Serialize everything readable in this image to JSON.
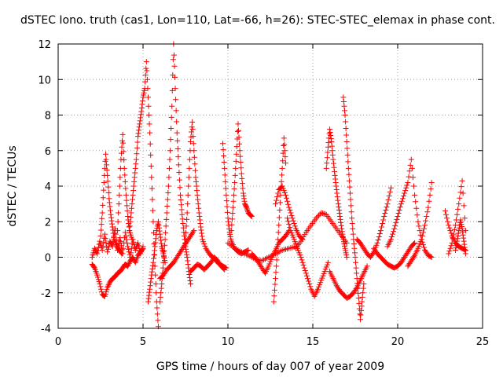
{
  "chart_data": {
    "type": "scatter",
    "title": "dSTEC Iono. truth (cas1, Lon=110, Lat=-66, h=26): STEC-STEC_elemax in phase cont.",
    "xlabel": "GPS time / hours of day 007 of year 2009",
    "ylabel": "dSTEC  / TECUs",
    "xlim": [
      0,
      25
    ],
    "ylim": [
      -4,
      12
    ],
    "x_ticks": [
      0,
      5,
      10,
      15,
      20,
      25
    ],
    "y_ticks": [
      -4,
      -2,
      0,
      2,
      4,
      6,
      8,
      10,
      12
    ],
    "x_tick_labels": [
      "0",
      "5",
      "10",
      "15",
      "20",
      "25"
    ],
    "y_tick_labels": [
      "-4",
      "-2",
      "0",
      "2",
      "4",
      "6",
      "8",
      "10",
      "12"
    ],
    "grid": true,
    "marker": "+",
    "color": "#ff0000",
    "series": [
      {
        "x": [
          2.0,
          2.15,
          2.3,
          2.45,
          2.6,
          2.75,
          2.9,
          3.05,
          3.2,
          3.35,
          3.5,
          3.65,
          3.8,
          3.95,
          4.1,
          4.25,
          4.4,
          4.55,
          4.7,
          4.85,
          5.0
        ],
        "y": [
          0.0,
          0.5,
          0.2,
          0.9,
          0.4,
          1.3,
          0.3,
          0.9,
          0.6,
          1.6,
          0.4,
          1.1,
          0.2,
          1.4,
          0.6,
          0.0,
          1.0,
          0.4,
          0.8,
          0.2,
          0.6
        ]
      },
      {
        "x": [
          2.0,
          2.15,
          2.3,
          2.45,
          2.6,
          2.75,
          2.9,
          3.05,
          3.2,
          3.35,
          3.5,
          3.65,
          3.8,
          3.95,
          4.1,
          4.25,
          4.4,
          4.55,
          4.7,
          4.85,
          5.0
        ],
        "y": [
          -0.4,
          -0.6,
          -1.0,
          -1.5,
          -2.1,
          -2.2,
          -1.7,
          -1.4,
          -1.2,
          -1.1,
          -0.9,
          -0.8,
          -0.6,
          -0.4,
          -0.5,
          -0.2,
          0.0,
          -0.3,
          0.1,
          0.3,
          0.5
        ]
      },
      {
        "x": [
          2.5,
          2.6,
          2.7,
          2.8,
          2.9,
          3.0,
          3.1,
          3.2,
          3.3,
          3.45,
          3.6,
          3.75
        ],
        "y": [
          1.2,
          2.5,
          4.2,
          5.8,
          4.6,
          3.3,
          2.4,
          1.7,
          1.0,
          0.6,
          0.4,
          0.2
        ]
      },
      {
        "x": [
          3.5,
          3.6,
          3.7,
          3.8,
          3.9,
          4.0,
          4.1,
          4.2,
          4.35
        ],
        "y": [
          1.5,
          3.5,
          5.5,
          6.9,
          5.0,
          3.5,
          2.3,
          1.5,
          1.0
        ]
      },
      {
        "x": [
          4.2,
          4.3,
          4.4,
          4.5,
          4.6,
          4.7,
          4.8,
          4.9,
          5.0,
          5.1,
          5.2,
          5.3,
          5.4,
          5.5,
          5.6,
          5.7,
          5.8,
          5.9
        ],
        "y": [
          1.5,
          2.5,
          3.5,
          4.5,
          5.5,
          6.8,
          7.5,
          8.2,
          9.0,
          9.5,
          11.0,
          9.0,
          7.0,
          4.5,
          2.0,
          -0.5,
          -2.5,
          -3.9
        ]
      },
      {
        "x": [
          5.3,
          5.4,
          5.5,
          5.6,
          5.7,
          5.8,
          5.9,
          6.0,
          6.1,
          6.2,
          6.3
        ],
        "y": [
          -2.5,
          -1.8,
          -1.0,
          -0.3,
          0.6,
          1.5,
          2.0,
          1.3,
          0.6,
          0.2,
          -0.3
        ]
      },
      {
        "x": [
          6.0,
          6.1,
          6.2,
          6.3,
          6.4,
          6.5,
          6.6,
          6.7,
          6.8,
          6.9,
          7.0,
          7.1,
          7.2,
          7.3,
          7.4,
          7.5,
          7.6,
          7.7,
          7.8
        ],
        "y": [
          -2.5,
          -1.5,
          -0.3,
          1.0,
          2.5,
          4.0,
          6.0,
          8.5,
          12.0,
          9.5,
          7.0,
          5.2,
          3.5,
          2.4,
          1.4,
          0.6,
          0.0,
          -0.8,
          -1.5
        ]
      },
      {
        "x": [
          6.0,
          6.2,
          6.4,
          6.6,
          6.8,
          7.0,
          7.2,
          7.4,
          7.6,
          7.8,
          8.0
        ],
        "y": [
          -1.2,
          -1.0,
          -0.7,
          -0.5,
          -0.3,
          0.0,
          0.3,
          0.6,
          0.9,
          1.2,
          1.5
        ]
      },
      {
        "x": [
          7.5,
          7.6,
          7.7,
          7.8,
          7.9,
          8.0,
          8.1,
          8.2,
          8.3,
          8.4,
          8.5,
          8.7,
          8.9,
          9.1,
          9.3,
          9.5,
          9.7,
          9.9
        ],
        "y": [
          1.0,
          2.5,
          4.5,
          6.5,
          7.6,
          6.0,
          4.5,
          3.5,
          2.5,
          1.7,
          1.0,
          0.5,
          0.2,
          0.0,
          -0.2,
          -0.4,
          -0.5,
          -0.6
        ]
      },
      {
        "x": [
          7.8,
          8.0,
          8.2,
          8.4,
          8.6,
          8.8,
          9.0,
          9.2,
          9.4,
          9.6,
          9.8
        ],
        "y": [
          -0.8,
          -0.6,
          -0.4,
          -0.5,
          -0.7,
          -0.5,
          -0.3,
          0.0,
          -0.2,
          -0.5,
          -0.7
        ]
      },
      {
        "x": [
          9.7,
          9.8,
          9.9,
          10.0,
          10.1,
          10.2,
          10.4,
          10.6,
          10.8,
          11.0,
          11.2
        ],
        "y": [
          6.4,
          5.0,
          3.5,
          2.2,
          1.4,
          0.9,
          0.5,
          0.3,
          0.2,
          0.3,
          0.4
        ]
      },
      {
        "x": [
          10.2,
          10.3,
          10.4,
          10.5,
          10.6,
          10.7,
          10.8,
          10.9,
          11.0,
          11.1,
          11.2,
          11.3,
          11.4
        ],
        "y": [
          1.5,
          2.8,
          4.2,
          5.8,
          7.5,
          6.0,
          4.7,
          3.6,
          3.0,
          2.8,
          2.5,
          2.4,
          2.3
        ]
      },
      {
        "x": [
          10.0,
          10.4,
          10.8,
          11.2,
          11.6,
          12.0,
          12.4,
          12.8,
          13.2,
          13.6,
          14.0
        ],
        "y": [
          0.8,
          0.5,
          0.3,
          0.1,
          -0.1,
          -0.2,
          0.0,
          0.2,
          0.4,
          0.5,
          0.6
        ]
      },
      {
        "x": [
          11.4,
          11.6,
          11.8,
          12.0,
          12.2,
          12.4,
          12.6,
          12.8,
          13.0,
          13.2,
          13.4,
          13.6
        ],
        "y": [
          0.2,
          0.0,
          -0.3,
          -0.6,
          -0.9,
          -0.5,
          0.0,
          0.4,
          0.8,
          1.0,
          1.2,
          1.5
        ]
      },
      {
        "x": [
          12.7,
          12.8,
          12.9,
          13.0,
          13.1,
          13.2,
          13.3,
          13.4
        ],
        "y": [
          -2.5,
          -1.2,
          0.2,
          1.8,
          3.5,
          5.0,
          6.7,
          5.3
        ]
      },
      {
        "x": [
          12.8,
          13.0,
          13.2,
          13.4,
          13.6,
          13.8,
          14.0,
          14.2,
          14.4
        ],
        "y": [
          3.0,
          3.8,
          4.0,
          3.5,
          2.8,
          2.2,
          1.6,
          1.2,
          1.0
        ]
      },
      {
        "x": [
          13.5,
          13.7,
          13.9,
          14.1,
          14.3,
          14.5,
          14.7,
          14.9,
          15.1,
          15.3,
          15.5,
          15.7,
          15.9
        ],
        "y": [
          2.2,
          1.5,
          1.0,
          0.5,
          0.0,
          -0.6,
          -1.2,
          -1.8,
          -2.2,
          -1.8,
          -1.3,
          -0.8,
          -0.3
        ]
      },
      {
        "x": [
          14.0,
          14.3,
          14.6,
          14.9,
          15.2,
          15.5,
          15.8,
          16.1,
          16.4,
          16.7,
          17.0
        ],
        "y": [
          0.5,
          0.9,
          1.4,
          1.8,
          2.2,
          2.5,
          2.4,
          2.0,
          1.6,
          1.2,
          0.8
        ]
      },
      {
        "x": [
          15.8,
          15.9,
          16.0,
          16.1,
          16.2,
          16.3,
          16.4,
          16.5,
          16.6,
          16.7,
          16.8,
          16.9,
          17.0
        ],
        "y": [
          5.0,
          6.2,
          7.2,
          6.5,
          5.5,
          4.6,
          3.8,
          3.0,
          2.3,
          1.6,
          1.0,
          0.5,
          0.0
        ]
      },
      {
        "x": [
          16.8,
          16.9,
          17.0,
          17.1,
          17.2,
          17.3,
          17.4,
          17.5,
          17.6,
          17.7,
          17.8,
          17.9,
          18.0
        ],
        "y": [
          9.0,
          8.0,
          6.5,
          5.0,
          3.6,
          2.2,
          1.0,
          0.0,
          -1.2,
          -2.3,
          -3.5,
          -2.5,
          -1.5
        ]
      },
      {
        "x": [
          16.0,
          16.2,
          16.4,
          16.6,
          16.8,
          17.0,
          17.2,
          17.4,
          17.6,
          17.8,
          18.0,
          18.2
        ],
        "y": [
          -0.8,
          -1.2,
          -1.6,
          -1.9,
          -2.1,
          -2.3,
          -2.2,
          -2.0,
          -1.7,
          -1.3,
          -0.9,
          -0.5
        ]
      },
      {
        "x": [
          17.6,
          17.8,
          18.0,
          18.2,
          18.4,
          18.6,
          18.8,
          19.0,
          19.2,
          19.4,
          19.6
        ],
        "y": [
          1.0,
          0.8,
          0.5,
          0.2,
          0.0,
          0.3,
          0.8,
          1.5,
          2.3,
          3.0,
          3.9
        ]
      },
      {
        "x": [
          18.6,
          18.8,
          19.0,
          19.2,
          19.4,
          19.6,
          19.8,
          20.0,
          20.2,
          20.4,
          20.6,
          20.8,
          21.0
        ],
        "y": [
          0.5,
          0.2,
          0.0,
          -0.2,
          -0.4,
          -0.5,
          -0.6,
          -0.5,
          -0.3,
          0.0,
          0.3,
          0.6,
          0.8
        ]
      },
      {
        "x": [
          19.4,
          19.6,
          19.8,
          20.0,
          20.2,
          20.4,
          20.6,
          20.8,
          21.0,
          21.2,
          21.4,
          21.6,
          21.8,
          22.0
        ],
        "y": [
          0.6,
          1.0,
          1.6,
          2.3,
          3.0,
          3.6,
          4.2,
          5.5,
          3.5,
          2.0,
          1.0,
          0.4,
          0.1,
          0.0
        ]
      },
      {
        "x": [
          20.6,
          20.8,
          21.0,
          21.2,
          21.4,
          21.6,
          21.8,
          22.0
        ],
        "y": [
          -0.5,
          -0.2,
          0.1,
          0.5,
          1.0,
          1.8,
          2.8,
          4.2
        ]
      },
      {
        "x": [
          22.8,
          23.0,
          23.2,
          23.4,
          23.6,
          23.8,
          24.0
        ],
        "y": [
          2.6,
          1.8,
          1.2,
          0.8,
          0.6,
          0.5,
          0.4
        ]
      },
      {
        "x": [
          23.0,
          23.2,
          23.4,
          23.6,
          23.8,
          24.0
        ],
        "y": [
          0.2,
          0.8,
          1.8,
          3.0,
          4.3,
          1.5
        ]
      },
      {
        "x": [
          23.4,
          23.5,
          23.6,
          23.7,
          23.8,
          23.9,
          24.0
        ],
        "y": [
          0.4,
          0.9,
          1.5,
          2.1,
          1.6,
          0.9,
          0.2
        ]
      }
    ]
  }
}
